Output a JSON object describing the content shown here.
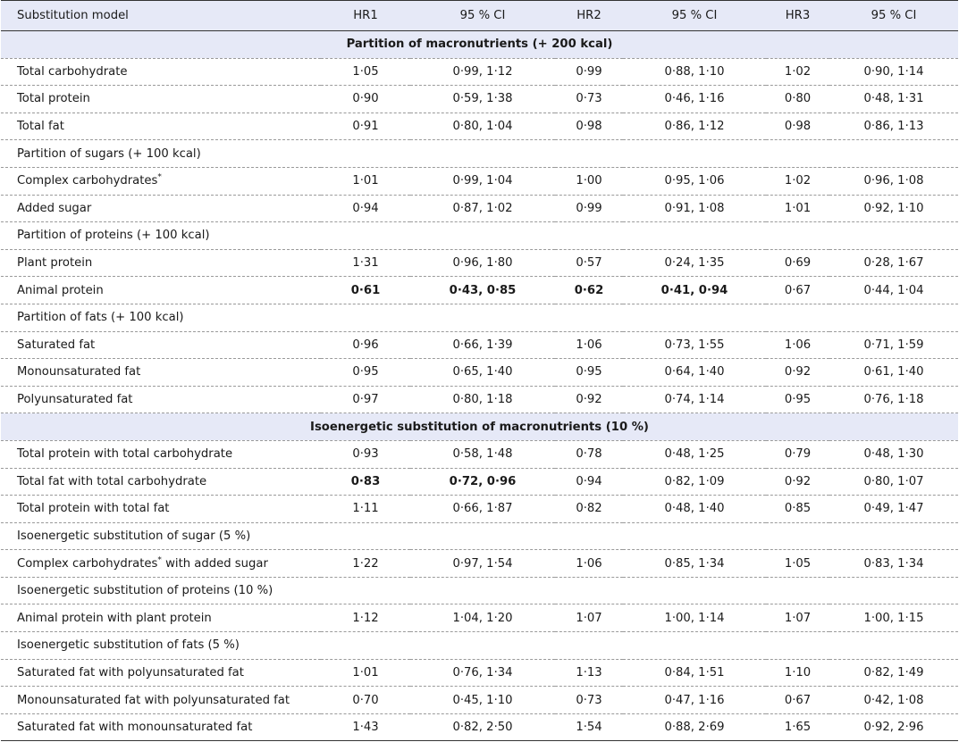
{
  "columns": [
    "Substitution model",
    "HR1",
    "95 % CI",
    "HR2",
    "95 % CI",
    "HR3",
    "95 % CI"
  ],
  "sections": {
    "s1": "Partition of macronutrients (+ 200 kcal)",
    "s2": "Isoenergetic substitution of macronutrients (10 %)"
  },
  "rows": {
    "r1": {
      "label": "Total carbohydrate",
      "hr1": "1·05",
      "ci1": "0·99, 1·12",
      "hr2": "0·99",
      "ci2": "0·88, 1·10",
      "hr3": "1·02",
      "ci3": "0·90, 1·14"
    },
    "r2": {
      "label": "Total protein",
      "hr1": "0·90",
      "ci1": "0·59, 1·38",
      "hr2": "0·73",
      "ci2": "0·46, 1·16",
      "hr3": "0·80",
      "ci3": "0·48, 1·31"
    },
    "r3": {
      "label": "Total fat",
      "hr1": "0·91",
      "ci1": "0·80, 1·04",
      "hr2": "0·98",
      "ci2": "0·86, 1·12",
      "hr3": "0·98",
      "ci3": "0·86, 1·13"
    },
    "r4": {
      "label": "Partition of sugars (+ 100 kcal)"
    },
    "r5": {
      "label": "Complex carbohydrates",
      "sup": "*",
      "hr1": "1·01",
      "ci1": "0·99, 1·04",
      "hr2": "1·00",
      "ci2": "0·95, 1·06",
      "hr3": "1·02",
      "ci3": "0·96, 1·08"
    },
    "r6": {
      "label": "Added sugar",
      "hr1": "0·94",
      "ci1": "0·87, 1·02",
      "hr2": "0·99",
      "ci2": "0·91, 1·08",
      "hr3": "1·01",
      "ci3": "0·92, 1·10"
    },
    "r7": {
      "label": "Partition of proteins (+ 100 kcal)"
    },
    "r8": {
      "label": "Plant protein",
      "hr1": "1·31",
      "ci1": "0·96, 1·80",
      "hr2": "0·57",
      "ci2": "0·24, 1·35",
      "hr3": "0·69",
      "ci3": "0·28, 1·67"
    },
    "r9": {
      "label": "Animal protein",
      "hr1": "0·61",
      "ci1": "0·43, 0·85",
      "hr2": "0·62",
      "ci2": "0·41, 0·94",
      "hr3": "0·67",
      "ci3": "0·44, 1·04"
    },
    "r10": {
      "label": "Partition of fats (+ 100 kcal)"
    },
    "r11": {
      "label": "Saturated fat",
      "hr1": "0·96",
      "ci1": "0·66, 1·39",
      "hr2": "1·06",
      "ci2": "0·73, 1·55",
      "hr3": "1·06",
      "ci3": "0·71, 1·59"
    },
    "r12": {
      "label": "Monounsaturated fat",
      "hr1": "0·95",
      "ci1": "0·65, 1·40",
      "hr2": "0·95",
      "ci2": "0·64, 1·40",
      "hr3": "0·92",
      "ci3": "0·61, 1·40"
    },
    "r13": {
      "label": "Polyunsaturated fat",
      "hr1": "0·97",
      "ci1": "0·80, 1·18",
      "hr2": "0·92",
      "ci2": "0·74, 1·14",
      "hr3": "0·95",
      "ci3": "0·76, 1·18"
    },
    "r14": {
      "label": "Total protein with total carbohydrate",
      "hr1": "0·93",
      "ci1": "0·58, 1·48",
      "hr2": "0·78",
      "ci2": "0·48, 1·25",
      "hr3": "0·79",
      "ci3": "0·48, 1·30"
    },
    "r15": {
      "label": "Total fat with total carbohydrate",
      "hr1": "0·83",
      "ci1": "0·72, 0·96",
      "hr2": "0·94",
      "ci2": "0·82, 1·09",
      "hr3": "0·92",
      "ci3": "0·80, 1·07"
    },
    "r16": {
      "label": "Total protein with total fat",
      "hr1": "1·11",
      "ci1": "0·66, 1·87",
      "hr2": "0·82",
      "ci2": "0·48, 1·40",
      "hr3": "0·85",
      "ci3": "0·49, 1·47"
    },
    "r17": {
      "label": "Isoenergetic substitution of sugar (5 %)"
    },
    "r18": {
      "label": "Complex carbohydrates",
      "sup": "*",
      "label_tail": " with added sugar",
      "hr1": "1·22",
      "ci1": "0·97, 1·54",
      "hr2": "1·06",
      "ci2": "0·85, 1·34",
      "hr3": "1·05",
      "ci3": "0·83, 1·34"
    },
    "r19": {
      "label": "Isoenergetic substitution of proteins (10 %)"
    },
    "r20": {
      "label": "Animal protein with plant protein",
      "hr1": "1·12",
      "ci1": "1·04, 1·20",
      "hr2": "1·07",
      "ci2": "1·00, 1·14",
      "hr3": "1·07",
      "ci3": "1·00, 1·15"
    },
    "r21": {
      "label": "Isoenergetic substitution of fats (5 %)"
    },
    "r22": {
      "label": "Saturated fat with polyunsaturated fat",
      "hr1": "1·01",
      "ci1": "0·76, 1·34",
      "hr2": "1·13",
      "ci2": "0·84, 1·51",
      "hr3": "1·10",
      "ci3": "0·82, 1·49"
    },
    "r23": {
      "label": "Monounsaturated fat with polyunsaturated fat",
      "hr1": "0·70",
      "ci1": "0·45, 1·10",
      "hr2": "0·73",
      "ci2": "0·47, 1·16",
      "hr3": "0·67",
      "ci3": "0·42, 1·08"
    },
    "r24": {
      "label": "Saturated fat with monounsaturated fat",
      "hr1": "1·43",
      "ci1": "0·82, 2·50",
      "hr2": "1·54",
      "ci2": "0·88, 2·69",
      "hr3": "1·65",
      "ci3": "0·92, 2·96"
    }
  }
}
